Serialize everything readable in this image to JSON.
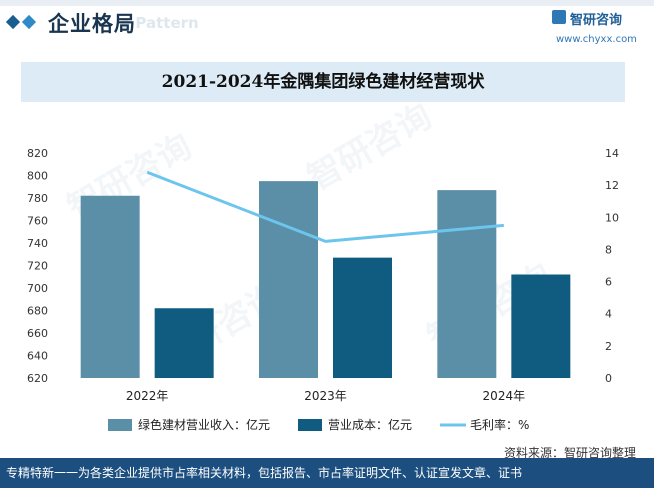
{
  "header": {
    "title": "企业格局",
    "subtitle": "e Pattern",
    "logo_text": "智研咨询",
    "logo_url": "www.chyxx.com"
  },
  "chart_data": {
    "type": "bar",
    "title": "2021-2024年金隅集团绿色建材经营现状",
    "categories": [
      "2022年",
      "2023年",
      "2024年"
    ],
    "series": [
      {
        "name": "绿色建材营业收入：亿元",
        "type": "bar",
        "axis": "left",
        "color": "#5b8fa8",
        "values": [
          782,
          795,
          787
        ]
      },
      {
        "name": "营业成本：亿元",
        "type": "bar",
        "axis": "left",
        "color": "#0f5c80",
        "values": [
          682,
          727,
          712
        ]
      },
      {
        "name": "毛利率：%",
        "type": "line",
        "axis": "right",
        "color": "#6cc5ec",
        "values": [
          12.8,
          8.5,
          9.5
        ]
      }
    ],
    "y_left": {
      "min": 620,
      "max": 820,
      "step": 20
    },
    "y_right": {
      "min": 0,
      "max": 14,
      "step": 2
    },
    "legend_position": "bottom",
    "grid": false
  },
  "source": "资料来源：智研咨询整理",
  "footer": "专精特新一一为各类企业提供市占率相关材料，包括报告、市占率证明文件、认证宣发文章、证书",
  "watermark": "智研咨询"
}
